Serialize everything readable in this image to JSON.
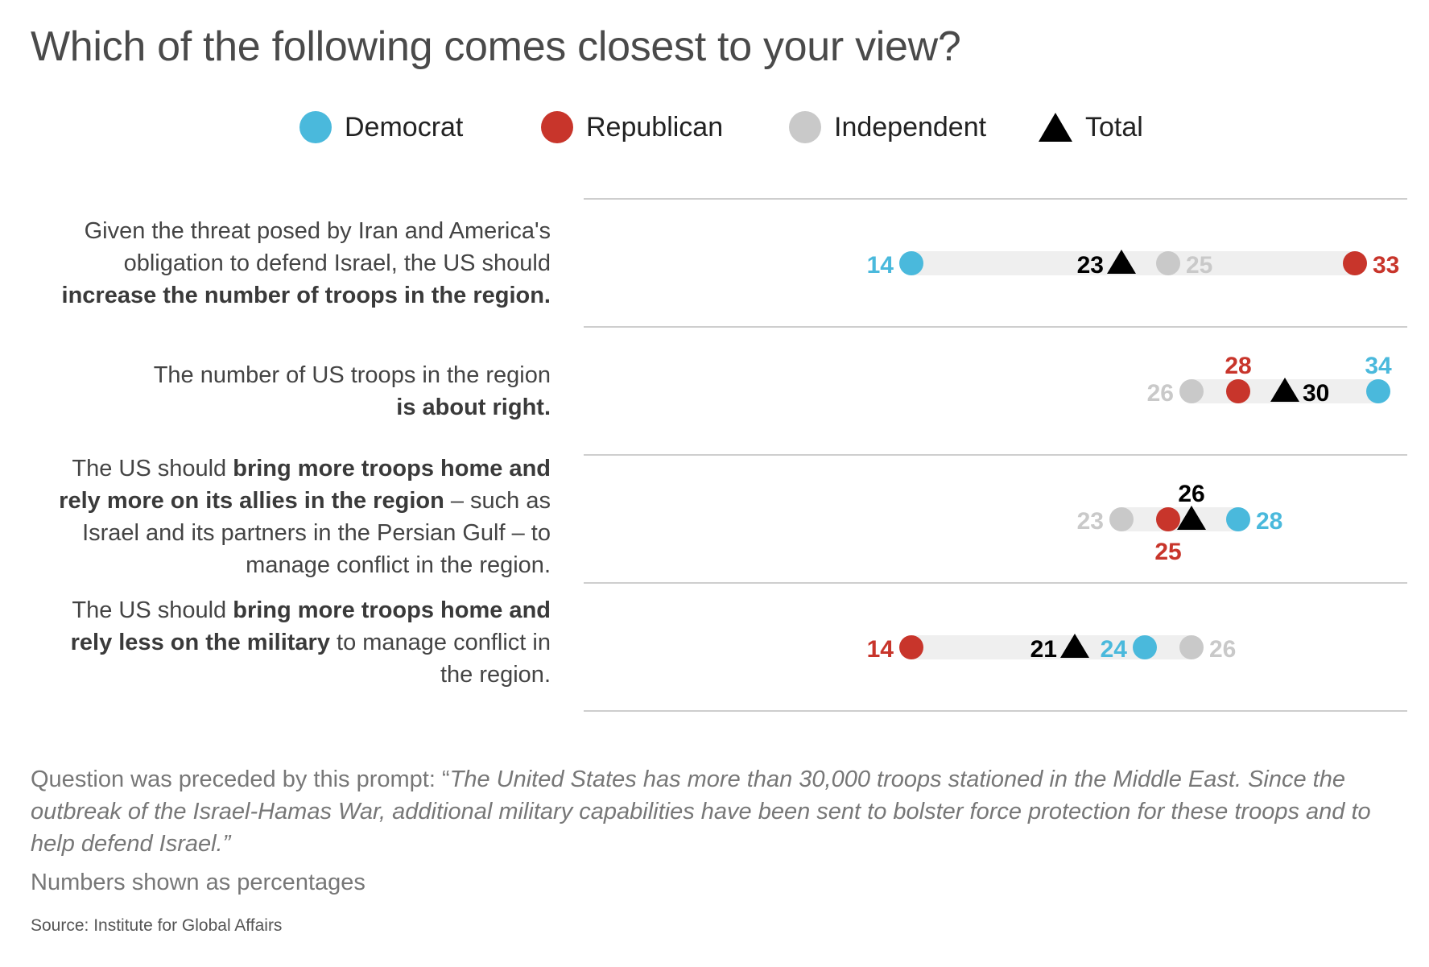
{
  "title": "Which of the following comes closest to your view?",
  "legend": [
    {
      "label": "Democrat",
      "color": "#4ab9dc",
      "shape": "circle"
    },
    {
      "label": "Republican",
      "color": "#c8352b",
      "shape": "circle"
    },
    {
      "label": "Independent",
      "color": "#c9c9c9",
      "shape": "circle"
    },
    {
      "label": "Total",
      "color": "#000000",
      "shape": "triangle"
    }
  ],
  "rows": [
    {
      "label_parts": [
        {
          "text": "Given the threat posed by Iran and America's",
          "bold": false
        },
        {
          "text": "obligation to defend Israel, the US should",
          "bold": false
        },
        {
          "text": "increase the number of troops in the region.",
          "bold": true
        }
      ]
    },
    {
      "label_parts": [
        {
          "text": "The number of US troops in the region",
          "bold": false
        },
        {
          "text": "is about right.",
          "bold": true
        }
      ]
    },
    {
      "label_parts": [
        {
          "text": "The US should ",
          "bold": false
        },
        {
          "text": "bring more troops home and rely more on its allies in the region",
          "bold": true
        },
        {
          "text": " – such as Israel and its partners in the Persian Gulf – to manage conflict in the region.",
          "bold": false
        }
      ]
    },
    {
      "label_parts": [
        {
          "text": "The US should ",
          "bold": false
        },
        {
          "text": "bring more troops home and rely less on the military",
          "bold": true
        },
        {
          "text": " to manage conflict in the region.",
          "bold": false
        }
      ]
    }
  ],
  "chart_data": {
    "type": "scatter",
    "title": "Which of the following comes closest to your view?",
    "unit": "percent",
    "categories": [
      "Given the threat posed by Iran and America's obligation to defend Israel, the US should increase the number of troops in the region.",
      "The number of US troops in the region is about right.",
      "The US should bring more troops home and rely more on its allies in the region – such as Israel and its partners in the Persian Gulf – to manage conflict in the region.",
      "The US should bring more troops home and rely less on the military to manage conflict in the region."
    ],
    "series": [
      {
        "name": "Democrat",
        "color": "#4ab9dc",
        "values": [
          14,
          34,
          28,
          24
        ]
      },
      {
        "name": "Republican",
        "color": "#c8352b",
        "values": [
          33,
          28,
          25,
          14
        ]
      },
      {
        "name": "Independent",
        "color": "#c9c9c9",
        "values": [
          25,
          26,
          23,
          26
        ]
      },
      {
        "name": "Total",
        "color": "#000000",
        "values": [
          23,
          30,
          26,
          21
        ]
      }
    ],
    "xlim": [
      0,
      35
    ],
    "grid": false,
    "legend_position": "top"
  },
  "footnote": {
    "prefix": "Question was preceded by this prompt: “",
    "quote": "The United States has more than 30,000 troops stationed in the Middle East. Since the outbreak of the Israel-Hamas War, additional military capabilities have been sent to bolster force protection for these troops and to help defend Israel.”"
  },
  "numbers_note": "Numbers shown as percentages",
  "source": "Source: Institute for Global Affairs"
}
